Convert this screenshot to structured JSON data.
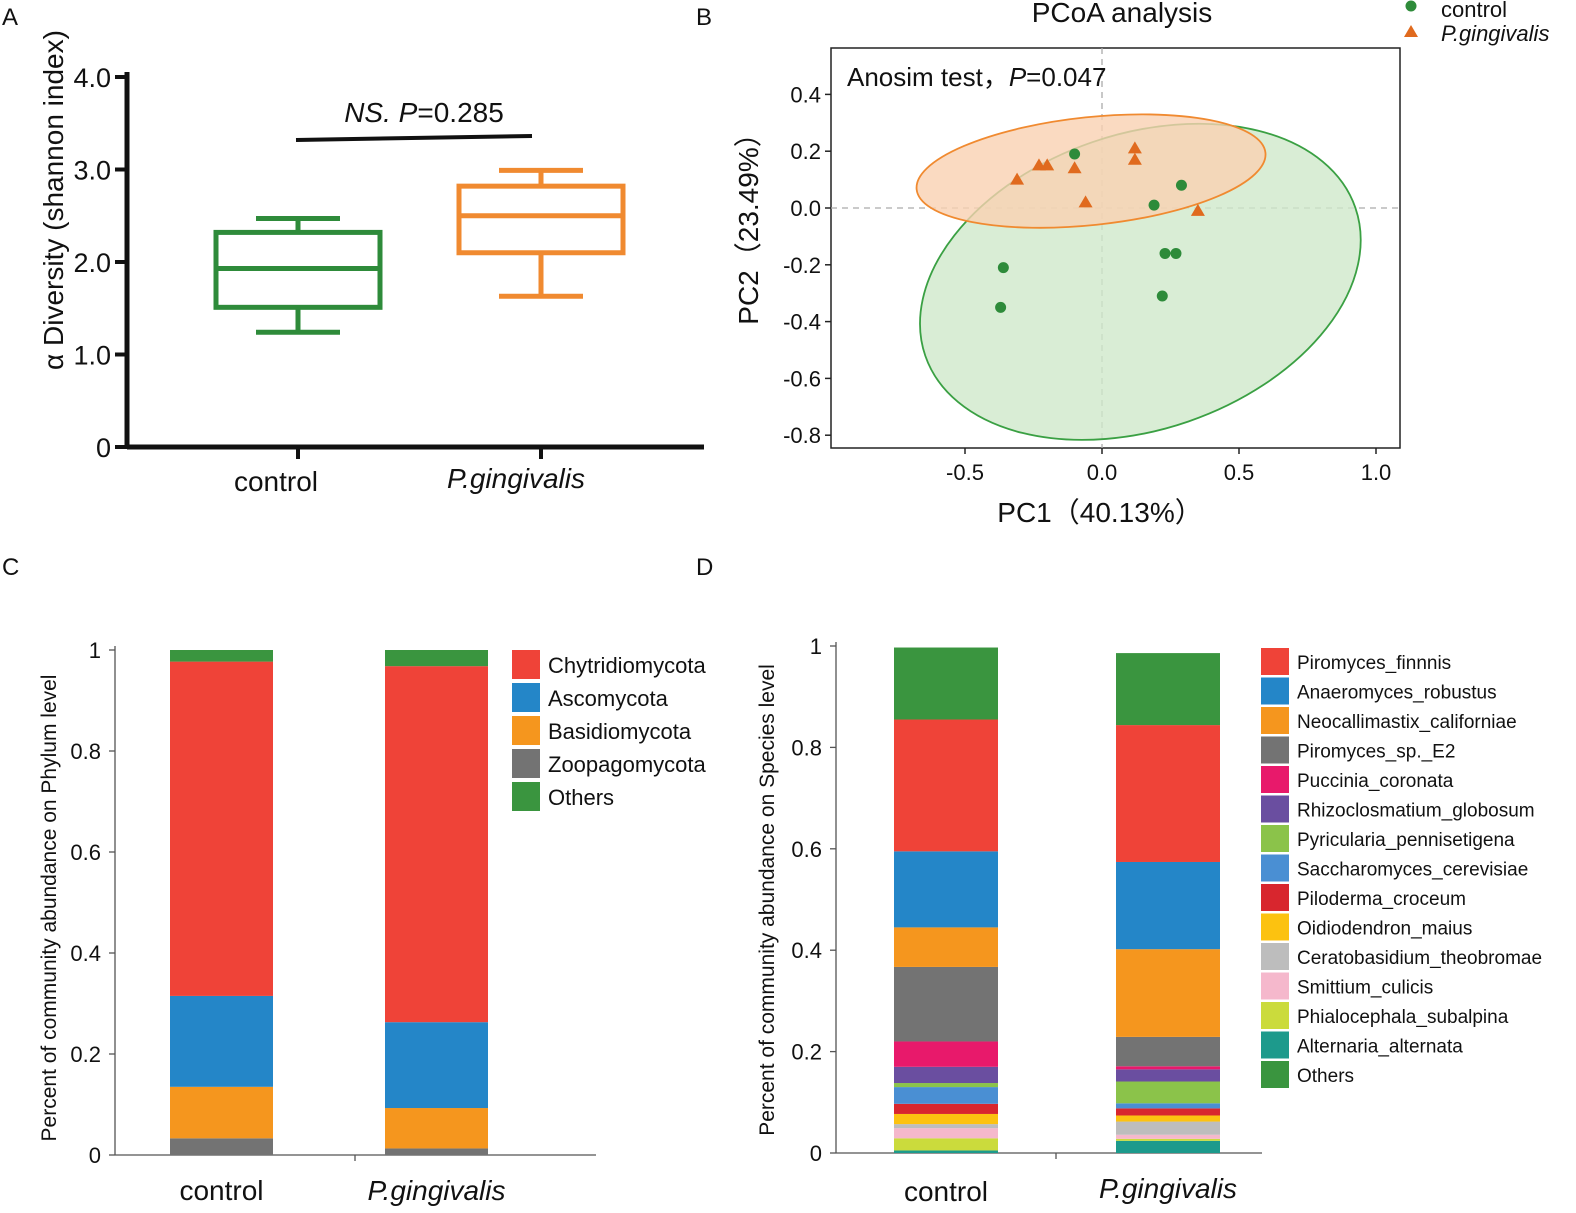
{
  "figure": {
    "colors": {
      "control": "#2e8b3a",
      "pg": "#f08a30",
      "ellipse_ctrl_fill": "#cfe8cb",
      "ellipse_pg_fill": "#f9d1b2"
    }
  },
  "chart_data": [
    {
      "panel": "A",
      "type": "box",
      "title": "",
      "ylabel": "α Diversity (shannon index)",
      "ylim": [
        0,
        4.0
      ],
      "yticks": [
        "0",
        "1.0",
        "2.0",
        "3.0",
        "4.0"
      ],
      "categories": [
        "control",
        "P.gingivalis"
      ],
      "boxes": [
        {
          "name": "control",
          "min": 1.24,
          "q1": 1.51,
          "median": 1.93,
          "q3": 2.32,
          "max": 2.47,
          "color": "#2e8b3a"
        },
        {
          "name": "P.gingivalis",
          "min": 1.63,
          "q1": 2.1,
          "median": 2.5,
          "q3": 2.82,
          "max": 2.99,
          "color": "#f08a30"
        }
      ],
      "annotation": {
        "ns": "NS.",
        "p_label": "P",
        "p_value": "=0.285"
      }
    },
    {
      "panel": "B",
      "type": "scatter",
      "title": "PCoA analysis",
      "xlabel": "PC1（40.13%）",
      "ylabel": "PC2（23.49%）",
      "xlim": [
        -0.98,
        1.05
      ],
      "ylim": [
        -0.85,
        0.55
      ],
      "xticks": [
        "-0.5",
        "0.0",
        "0.5",
        "1.0"
      ],
      "yticks": [
        "0.4",
        "0.2",
        "0.0",
        "-0.2",
        "-0.4",
        "-0.6",
        "-0.8"
      ],
      "annotation": {
        "text": "Anosim test，",
        "p_label": "P",
        "p_value": "=0.047"
      },
      "legend": [
        {
          "name": "control",
          "marker": "circle",
          "color": "#2e8b3a"
        },
        {
          "name": "P.gingivalis",
          "marker": "triangle",
          "color": "#e06a1e"
        }
      ],
      "series": [
        {
          "name": "control",
          "points": [
            [
              -0.1,
              0.19
            ],
            [
              0.29,
              0.08
            ],
            [
              0.19,
              0.01
            ],
            [
              0.23,
              -0.16
            ],
            [
              0.27,
              -0.16
            ],
            [
              -0.36,
              -0.21
            ],
            [
              0.22,
              -0.31
            ],
            [
              -0.37,
              -0.35
            ]
          ]
        },
        {
          "name": "P.gingivalis",
          "points": [
            [
              -0.31,
              0.1
            ],
            [
              -0.23,
              0.15
            ],
            [
              -0.2,
              0.15
            ],
            [
              -0.1,
              0.14
            ],
            [
              0.12,
              0.21
            ],
            [
              0.12,
              0.17
            ],
            [
              -0.06,
              0.02
            ],
            [
              0.35,
              -0.01
            ]
          ]
        }
      ],
      "ellipses": [
        {
          "name": "control",
          "cx": 0.14,
          "cy": -0.26,
          "rx": 0.83,
          "ry": 0.52,
          "angle_deg": -19,
          "fill": "#cfe8cb",
          "stroke": "#3aa043"
        },
        {
          "name": "P.gingivalis",
          "cx": -0.04,
          "cy": 0.13,
          "rx": 0.64,
          "ry": 0.19,
          "angle_deg": -6,
          "fill": "#f9d1b2",
          "stroke": "#f08a30"
        }
      ]
    },
    {
      "panel": "C",
      "type": "stacked-bar",
      "ylabel": "Percent of community abundance on Phylum level",
      "ylim": [
        0,
        1
      ],
      "yticks": [
        "0",
        "0.2",
        "0.4",
        "0.6",
        "0.8",
        "1"
      ],
      "categories": [
        "control",
        "P.gingivalis"
      ],
      "series": [
        {
          "name": "Zoopagomycota",
          "color": "#737373",
          "values": [
            0.033,
            0.013
          ]
        },
        {
          "name": "Basidiomycota",
          "color": "#f5961e",
          "values": [
            0.102,
            0.08
          ]
        },
        {
          "name": "Ascomycota",
          "color": "#2486c8",
          "values": [
            0.18,
            0.17
          ]
        },
        {
          "name": "Chytridiomycota",
          "color": "#ef4338",
          "values": [
            0.662,
            0.705
          ]
        },
        {
          "name": "Others",
          "color": "#3a953f",
          "values": [
            0.023,
            0.032
          ]
        }
      ],
      "legend": [
        "Chytridiomycota",
        "Ascomycota",
        "Basidiomycota",
        "Zoopagomycota",
        "Others"
      ]
    },
    {
      "panel": "D",
      "type": "stacked-bar",
      "ylabel": "Percent of community abundance on Species level",
      "ylim": [
        0,
        1
      ],
      "yticks": [
        "0",
        "0.2",
        "0.4",
        "0.6",
        "0.8",
        "1"
      ],
      "categories": [
        "control",
        "P.gingivalis"
      ],
      "series": [
        {
          "name": "Alternaria_alternata",
          "color": "#1d9a8c",
          "values": [
            0.005,
            0.024
          ]
        },
        {
          "name": "Phialocephala_subalpina",
          "color": "#cbdb3c",
          "values": [
            0.024,
            0.004
          ]
        },
        {
          "name": "Smittium_culicis",
          "color": "#f5b8cc",
          "values": [
            0.02,
            0.008
          ]
        },
        {
          "name": "Ceratobasidium_theobromae",
          "color": "#bdbdbd",
          "values": [
            0.008,
            0.026
          ]
        },
        {
          "name": "Oidiodendron_maius",
          "color": "#fcc210",
          "values": [
            0.02,
            0.012
          ]
        },
        {
          "name": "Piloderma_croceum",
          "color": "#d8262e",
          "values": [
            0.02,
            0.014
          ]
        },
        {
          "name": "Saccharomyces_cerevisiae",
          "color": "#4a8fd3",
          "values": [
            0.033,
            0.01
          ]
        },
        {
          "name": "Pyricularia_pennisetigena",
          "color": "#8bc34a",
          "values": [
            0.008,
            0.043
          ]
        },
        {
          "name": "Rhizoclosmatium_globosum",
          "color": "#6a4ea0",
          "values": [
            0.032,
            0.024
          ]
        },
        {
          "name": "Puccinia_coronata",
          "color": "#e8196b",
          "values": [
            0.05,
            0.006
          ]
        },
        {
          "name": "Piromyces_sp._E2",
          "color": "#737373",
          "values": [
            0.147,
            0.058
          ]
        },
        {
          "name": "Neocallimastix_californiae",
          "color": "#f5961e",
          "values": [
            0.078,
            0.173
          ]
        },
        {
          "name": "Anaeromyces_robustus",
          "color": "#2486c8",
          "values": [
            0.15,
            0.172
          ]
        },
        {
          "name": "Piromyces_finnnis",
          "color": "#ef4338",
          "values": [
            0.26,
            0.27
          ]
        },
        {
          "name": "Others",
          "color": "#3a953f",
          "values": [
            0.142,
            0.142
          ]
        }
      ],
      "legend": [
        "Piromyces_finnnis",
        "Anaeromyces_robustus",
        "Neocallimastix_californiae",
        "Piromyces_sp._E2",
        "Puccinia_coronata",
        "Rhizoclosmatium_globosum",
        "Pyricularia_pennisetigena",
        "Saccharomyces_cerevisiae",
        "Piloderma_croceum",
        "Oidiodendron_maius",
        "Ceratobasidium_theobromae",
        "Smittium_culicis",
        "Phialocephala_subalpina",
        "Alternaria_alternata",
        "Others"
      ]
    }
  ]
}
